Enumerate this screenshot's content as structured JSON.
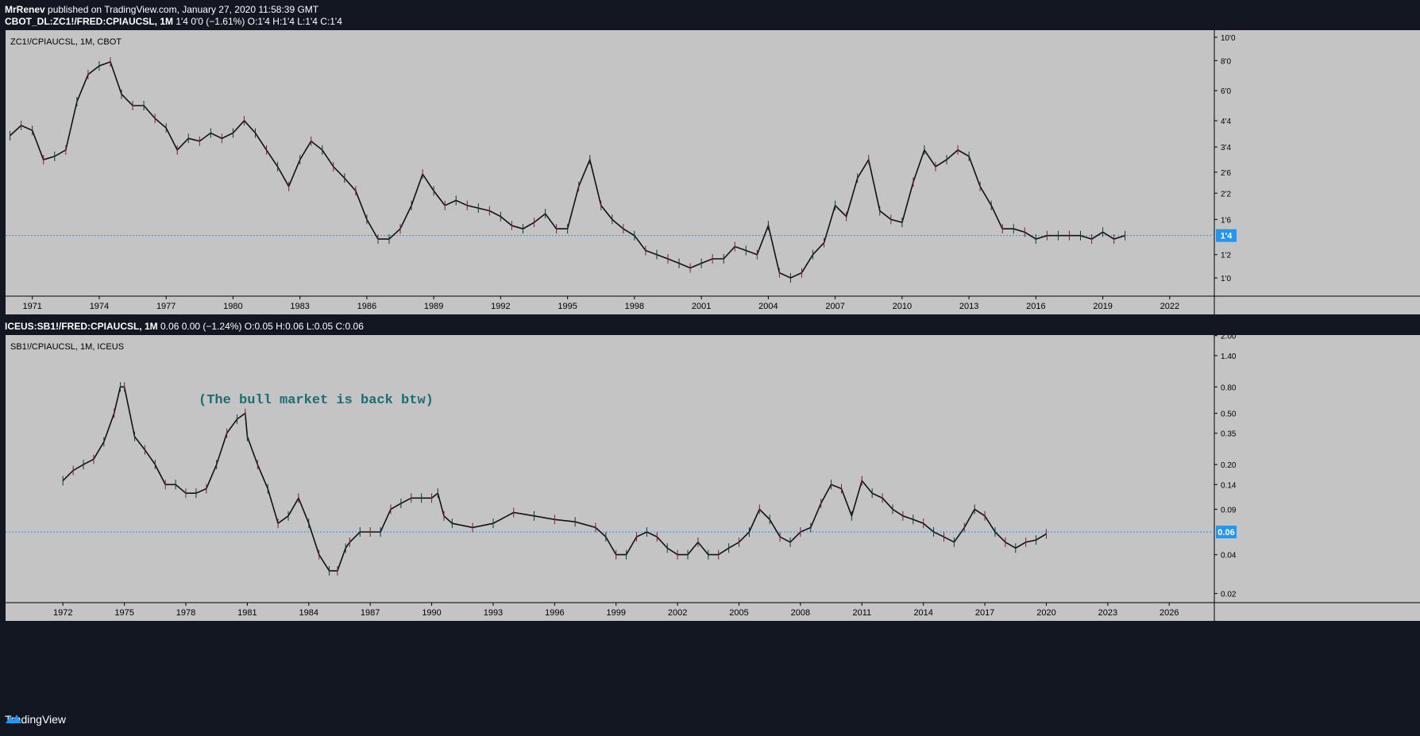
{
  "header": {
    "author": "MrRenev",
    "published": "published on TradingView.com, January 27, 2020 11:58:39 GMT"
  },
  "pane1": {
    "info_symbol": "CBOT_DL:ZC1!/FRED:CPIAUCSL, 1M",
    "info_values": "1'4 0'0 (−1.61%) O:1'4 H:1'4 L:1'4 C:1'4",
    "legend": "ZC1!/CPIAUCSL, 1M, CBOT",
    "last_label": "1'4",
    "colors": {
      "line": "#2196f3",
      "label_bg": "#2196f3",
      "annotation": "#1a6e6e"
    }
  },
  "pane2": {
    "info_symbol": "ICEUS:SB1!/FRED:CPIAUCSL, 1M",
    "info_values": "0.06 0.00 (−1.24%) O:0.05 H:0.06 L:0.05 C:0.06",
    "legend": "SB1!/CPIAUCSL, 1M, ICEUS",
    "annotation": "(The bull market is back btw)",
    "last_label": "0.06"
  },
  "footer": {
    "brand": "TradingView",
    "icon": "tradingview-logo-icon"
  },
  "chart_data": [
    {
      "type": "line",
      "title": "ZC1!/CPIAUCSL, 1M, CBOT",
      "xlabel": "",
      "ylabel": "",
      "x_ticks": [
        "1971",
        "1974",
        "1977",
        "1980",
        "1983",
        "1986",
        "1989",
        "1992",
        "1995",
        "1998",
        "2001",
        "2004",
        "2007",
        "2010",
        "2013",
        "2016",
        "2019",
        "2022"
      ],
      "y_ticks": [
        "10'0",
        "8'0",
        "6'0",
        "4'4",
        "3'4",
        "2'6",
        "2'2",
        "1'6",
        "1'2",
        "1'0"
      ],
      "y_ticks_numeric": [
        10,
        8,
        6,
        4.5,
        3.5,
        2.75,
        2.25,
        1.75,
        1.25,
        1.0
      ],
      "y_scale": "log",
      "xlim": [
        1969.8,
        2024.0
      ],
      "ylim": [
        0.84,
        10.7
      ],
      "last_value": 1.5,
      "series": [
        {
          "x": [
            1970.0,
            1970.5,
            1971.0,
            1971.5,
            1972.0,
            1972.5,
            1973.0,
            1973.5,
            1974.0,
            1974.5,
            1975.0,
            1975.5,
            1976.0,
            1976.5,
            1977.0,
            1977.5,
            1978.0,
            1978.5,
            1979.0,
            1979.5,
            1980.0,
            1980.5,
            1981.0,
            1981.5,
            1982.0,
            1982.5,
            1983.0,
            1983.5,
            1984.0,
            1984.5,
            1985.0,
            1985.5,
            1986.0,
            1986.5,
            1987.0,
            1987.5,
            1988.0,
            1988.5,
            1989.0,
            1989.5,
            1990.0,
            1990.5,
            1991.0,
            1991.5,
            1992.0,
            1992.5,
            1993.0,
            1993.5,
            1994.0,
            1994.5,
            1995.0,
            1995.5,
            1996.0,
            1996.5,
            1997.0,
            1997.5,
            1998.0,
            1998.5,
            1999.0,
            1999.5,
            2000.0,
            2000.5,
            2001.0,
            2001.5,
            2002.0,
            2002.5,
            2003.0,
            2003.5,
            2004.0,
            2004.5,
            2005.0,
            2005.5,
            2006.0,
            2006.5,
            2007.0,
            2007.5,
            2008.0,
            2008.5,
            2009.0,
            2009.5,
            2010.0,
            2010.5,
            2011.0,
            2011.5,
            2012.0,
            2012.5,
            2013.0,
            2013.5,
            2014.0,
            2014.5,
            2015.0,
            2015.5,
            2016.0,
            2016.5,
            2017.0,
            2017.5,
            2018.0,
            2018.5,
            2019.0,
            2019.5,
            2020.0
          ],
          "values": [
            3.9,
            4.3,
            4.1,
            3.1,
            3.2,
            3.4,
            5.4,
            7.0,
            7.6,
            7.9,
            5.8,
            5.2,
            5.2,
            4.6,
            4.2,
            3.4,
            3.8,
            3.7,
            4.0,
            3.8,
            4.0,
            4.5,
            4.0,
            3.4,
            2.9,
            2.4,
            3.1,
            3.7,
            3.4,
            2.9,
            2.6,
            2.3,
            1.75,
            1.45,
            1.45,
            1.6,
            2.0,
            2.7,
            2.3,
            2.0,
            2.1,
            2.0,
            1.95,
            1.9,
            1.8,
            1.65,
            1.6,
            1.7,
            1.85,
            1.6,
            1.6,
            2.4,
            3.1,
            2.0,
            1.75,
            1.6,
            1.5,
            1.3,
            1.25,
            1.2,
            1.15,
            1.1,
            1.15,
            1.2,
            1.2,
            1.35,
            1.3,
            1.25,
            1.65,
            1.05,
            1.0,
            1.05,
            1.25,
            1.4,
            2.0,
            1.8,
            2.6,
            3.1,
            1.9,
            1.75,
            1.7,
            2.5,
            3.4,
            2.9,
            3.1,
            3.4,
            3.2,
            2.4,
            2.0,
            1.6,
            1.6,
            1.55,
            1.45,
            1.5,
            1.5,
            1.5,
            1.5,
            1.45,
            1.55,
            1.45,
            1.5
          ]
        }
      ]
    },
    {
      "type": "line",
      "title": "SB1!/CPIAUCSL, 1M, ICEUS",
      "xlabel": "",
      "ylabel": "",
      "x_ticks": [
        "1972",
        "1975",
        "1978",
        "1981",
        "1984",
        "1987",
        "1990",
        "1993",
        "1996",
        "1999",
        "2002",
        "2005",
        "2008",
        "2011",
        "2014",
        "2017",
        "2020",
        "2023",
        "2026"
      ],
      "y_ticks": [
        "2.00",
        "1.40",
        "0.80",
        "0.50",
        "0.35",
        "0.20",
        "0.14",
        "0.09",
        "0.04",
        "0.02"
      ],
      "y_ticks_numeric": [
        2.0,
        1.4,
        0.8,
        0.5,
        0.35,
        0.2,
        0.14,
        0.09,
        0.04,
        0.02
      ],
      "y_scale": "log",
      "xlim": [
        1969.2,
        2028.2
      ],
      "ylim": [
        0.017,
        2.02
      ],
      "last_value": 0.06,
      "annotations": [
        "(The bull market is back btw)"
      ],
      "series": [
        {
          "x": [
            1972.0,
            1972.5,
            1973.0,
            1973.5,
            1974.0,
            1974.5,
            1974.8,
            1975.0,
            1975.5,
            1976.0,
            1976.5,
            1977.0,
            1977.5,
            1978.0,
            1978.5,
            1979.0,
            1979.5,
            1980.0,
            1980.5,
            1980.9,
            1981.0,
            1981.5,
            1982.0,
            1982.5,
            1983.0,
            1983.5,
            1984.0,
            1984.5,
            1985.0,
            1985.4,
            1985.8,
            1986.0,
            1986.5,
            1987.0,
            1987.5,
            1988.0,
            1988.5,
            1989.0,
            1989.5,
            1990.0,
            1990.3,
            1990.6,
            1991.0,
            1992.0,
            1993.0,
            1994.0,
            1995.0,
            1996.0,
            1997.0,
            1998.0,
            1998.5,
            1999.0,
            1999.5,
            2000.0,
            2000.5,
            2001.0,
            2001.5,
            2002.0,
            2002.5,
            2003.0,
            2003.5,
            2004.0,
            2004.5,
            2005.0,
            2005.5,
            2006.0,
            2006.5,
            2007.0,
            2007.5,
            2008.0,
            2008.5,
            2009.0,
            2009.5,
            2010.0,
            2010.5,
            2011.0,
            2011.5,
            2012.0,
            2012.5,
            2013.0,
            2013.5,
            2014.0,
            2014.5,
            2015.0,
            2015.5,
            2016.0,
            2016.5,
            2017.0,
            2017.5,
            2018.0,
            2018.5,
            2019.0,
            2019.5,
            2020.0
          ],
          "values": [
            0.15,
            0.18,
            0.2,
            0.22,
            0.3,
            0.5,
            0.8,
            0.8,
            0.33,
            0.26,
            0.2,
            0.14,
            0.14,
            0.12,
            0.12,
            0.13,
            0.2,
            0.35,
            0.45,
            0.5,
            0.33,
            0.2,
            0.13,
            0.07,
            0.08,
            0.11,
            0.07,
            0.04,
            0.03,
            0.03,
            0.045,
            0.05,
            0.06,
            0.06,
            0.06,
            0.09,
            0.1,
            0.11,
            0.11,
            0.11,
            0.12,
            0.08,
            0.07,
            0.065,
            0.07,
            0.085,
            0.08,
            0.075,
            0.072,
            0.065,
            0.055,
            0.04,
            0.04,
            0.055,
            0.06,
            0.055,
            0.045,
            0.04,
            0.04,
            0.05,
            0.04,
            0.04,
            0.045,
            0.05,
            0.06,
            0.09,
            0.075,
            0.055,
            0.05,
            0.06,
            0.065,
            0.1,
            0.14,
            0.13,
            0.08,
            0.15,
            0.12,
            0.11,
            0.09,
            0.08,
            0.075,
            0.07,
            0.06,
            0.055,
            0.05,
            0.065,
            0.09,
            0.08,
            0.06,
            0.05,
            0.045,
            0.05,
            0.052,
            0.058
          ]
        }
      ]
    }
  ]
}
